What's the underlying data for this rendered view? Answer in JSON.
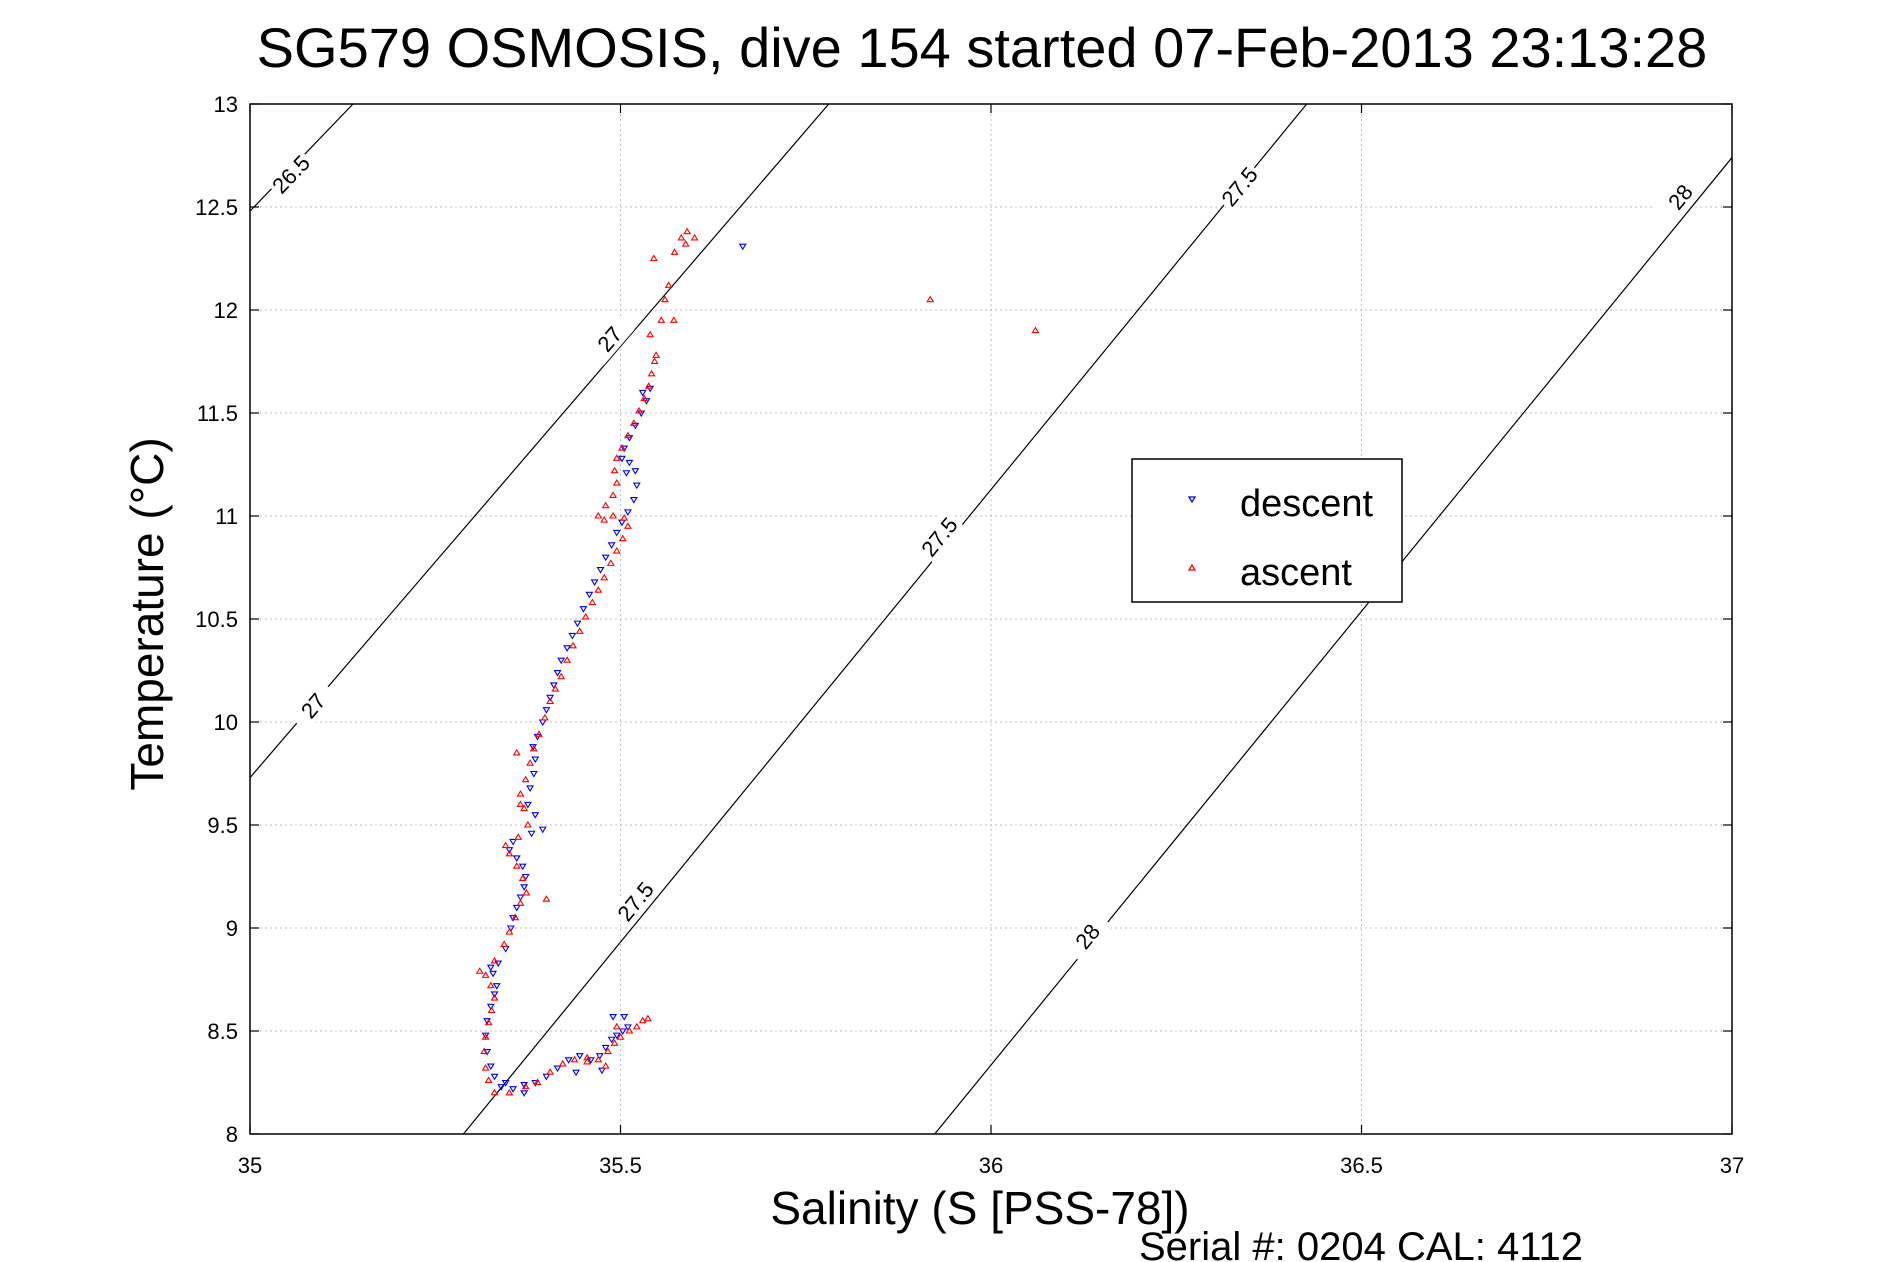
{
  "chart_data": {
    "type": "scatter",
    "title": "SG579 OSMOSIS, dive 154 started 07-Feb-2013 23:13:28",
    "xlabel": "Salinity (S [PSS-78])",
    "ylabel": "Temperature (°C)",
    "xlim": [
      35,
      37
    ],
    "ylim": [
      8,
      13
    ],
    "xticks": [
      35,
      35.5,
      36,
      36.5,
      37
    ],
    "xtick_labels": [
      "35",
      "35.5",
      "36",
      "36.5",
      "37"
    ],
    "yticks": [
      8,
      8.5,
      9,
      9.5,
      10,
      10.5,
      11,
      11.5,
      12,
      12.5,
      13
    ],
    "ytick_labels": [
      "8",
      "8.5",
      "9",
      "9.5",
      "10",
      "10.5",
      "11",
      "11.5",
      "12",
      "12.5",
      "13"
    ],
    "grid": true,
    "legend_position": "right-center",
    "colors": {
      "descent": "#0000ff",
      "ascent": "#ff0000",
      "contour": "#000000",
      "grid": "#bfbfbf"
    },
    "density_contours": [
      {
        "label": "26.5",
        "points": [
          [
            35.0,
            12.48
          ],
          [
            35.139,
            13.0
          ]
        ]
      },
      {
        "label": "27",
        "points": [
          [
            35.0,
            9.73
          ],
          [
            35.781,
            13.0
          ]
        ]
      },
      {
        "label": "27.5",
        "points": [
          [
            35.288,
            8.0
          ],
          [
            36.426,
            13.0
          ]
        ]
      },
      {
        "label": "28",
        "points": [
          [
            35.924,
            8.0
          ],
          [
            37.0,
            12.74
          ]
        ]
      }
    ],
    "contour_labels": [
      {
        "text": "26.5",
        "x": 35.055,
        "y": 12.66
      },
      {
        "text": "27",
        "x": 35.485,
        "y": 11.86
      },
      {
        "text": "27",
        "x": 35.085,
        "y": 10.08
      },
      {
        "text": "27.5",
        "x": 36.335,
        "y": 12.6
      },
      {
        "text": "27.5",
        "x": 35.93,
        "y": 10.9
      },
      {
        "text": "27.5",
        "x": 35.52,
        "y": 9.13
      },
      {
        "text": "28",
        "x": 36.93,
        "y": 12.55
      },
      {
        "text": "28",
        "x": 36.13,
        "y": 8.96
      }
    ],
    "series": [
      {
        "name": "descent",
        "marker": "triangle-down",
        "points": [
          [
            35.339,
            8.23
          ],
          [
            35.33,
            8.28
          ],
          [
            35.325,
            8.33
          ],
          [
            35.32,
            8.4
          ],
          [
            35.318,
            8.48
          ],
          [
            35.32,
            8.55
          ],
          [
            35.325,
            8.62
          ],
          [
            35.33,
            8.68
          ],
          [
            35.333,
            8.72
          ],
          [
            35.328,
            8.78
          ],
          [
            35.325,
            8.81
          ],
          [
            35.335,
            8.83
          ],
          [
            35.345,
            8.9
          ],
          [
            35.352,
            9.0
          ],
          [
            35.355,
            9.05
          ],
          [
            35.36,
            9.1
          ],
          [
            35.365,
            9.15
          ],
          [
            35.37,
            9.2
          ],
          [
            35.372,
            9.25
          ],
          [
            35.368,
            9.3
          ],
          [
            35.36,
            9.34
          ],
          [
            35.35,
            9.38
          ],
          [
            35.355,
            9.42
          ],
          [
            35.38,
            9.46
          ],
          [
            35.395,
            9.48
          ],
          [
            35.385,
            9.55
          ],
          [
            35.375,
            9.6
          ],
          [
            35.378,
            9.68
          ],
          [
            35.383,
            9.75
          ],
          [
            35.385,
            9.82
          ],
          [
            35.382,
            9.88
          ],
          [
            35.388,
            9.93
          ],
          [
            35.395,
            10.0
          ],
          [
            35.4,
            10.06
          ],
          [
            35.405,
            10.12
          ],
          [
            35.41,
            10.18
          ],
          [
            35.415,
            10.24
          ],
          [
            35.42,
            10.3
          ],
          [
            35.428,
            10.36
          ],
          [
            35.435,
            10.42
          ],
          [
            35.442,
            10.48
          ],
          [
            35.45,
            10.55
          ],
          [
            35.458,
            10.62
          ],
          [
            35.465,
            10.68
          ],
          [
            35.473,
            10.74
          ],
          [
            35.48,
            10.8
          ],
          [
            35.488,
            10.86
          ],
          [
            35.495,
            10.92
          ],
          [
            35.502,
            10.97
          ],
          [
            35.51,
            11.02
          ],
          [
            35.518,
            11.08
          ],
          [
            35.522,
            11.15
          ],
          [
            35.52,
            11.22
          ],
          [
            35.512,
            11.26
          ],
          [
            35.502,
            11.28
          ],
          [
            35.505,
            11.33
          ],
          [
            35.512,
            11.38
          ],
          [
            35.52,
            11.44
          ],
          [
            35.528,
            11.5
          ],
          [
            35.535,
            11.56
          ],
          [
            35.54,
            11.62
          ],
          [
            35.53,
            11.6
          ],
          [
            35.345,
            8.25
          ],
          [
            35.355,
            8.22
          ],
          [
            35.37,
            8.24
          ],
          [
            35.385,
            8.25
          ],
          [
            35.4,
            8.28
          ],
          [
            35.415,
            8.32
          ],
          [
            35.43,
            8.36
          ],
          [
            35.445,
            8.38
          ],
          [
            35.46,
            8.36
          ],
          [
            35.472,
            8.38
          ],
          [
            35.48,
            8.42
          ],
          [
            35.488,
            8.46
          ],
          [
            35.495,
            8.48
          ],
          [
            35.503,
            8.5
          ],
          [
            35.51,
            8.52
          ],
          [
            35.49,
            8.57
          ],
          [
            35.505,
            8.57
          ],
          [
            35.44,
            8.3
          ],
          [
            35.475,
            8.31
          ],
          [
            35.37,
            8.2
          ],
          [
            35.665,
            12.31
          ],
          [
            35.508,
            11.21
          ]
        ]
      },
      {
        "name": "ascent",
        "marker": "triangle-up",
        "points": [
          [
            35.33,
            8.2
          ],
          [
            35.322,
            8.26
          ],
          [
            35.318,
            8.32
          ],
          [
            35.316,
            8.4
          ],
          [
            35.318,
            8.47
          ],
          [
            35.322,
            8.54
          ],
          [
            35.326,
            8.6
          ],
          [
            35.33,
            8.66
          ],
          [
            35.325,
            8.72
          ],
          [
            35.318,
            8.77
          ],
          [
            35.31,
            8.79
          ],
          [
            35.33,
            8.84
          ],
          [
            35.343,
            8.92
          ],
          [
            35.35,
            8.98
          ],
          [
            35.358,
            9.05
          ],
          [
            35.365,
            9.12
          ],
          [
            35.373,
            9.17
          ],
          [
            35.368,
            9.24
          ],
          [
            35.36,
            9.3
          ],
          [
            35.35,
            9.36
          ],
          [
            35.345,
            9.4
          ],
          [
            35.362,
            9.44
          ],
          [
            35.375,
            9.5
          ],
          [
            35.37,
            9.58
          ],
          [
            35.365,
            9.65
          ],
          [
            35.372,
            9.72
          ],
          [
            35.378,
            9.8
          ],
          [
            35.383,
            9.87
          ],
          [
            35.39,
            9.94
          ],
          [
            35.398,
            10.02
          ],
          [
            35.405,
            10.1
          ],
          [
            35.412,
            10.16
          ],
          [
            35.42,
            10.22
          ],
          [
            35.428,
            10.3
          ],
          [
            35.436,
            10.37
          ],
          [
            35.445,
            10.44
          ],
          [
            35.453,
            10.51
          ],
          [
            35.462,
            10.58
          ],
          [
            35.47,
            10.64
          ],
          [
            35.478,
            10.7
          ],
          [
            35.487,
            10.77
          ],
          [
            35.495,
            10.83
          ],
          [
            35.503,
            10.89
          ],
          [
            35.51,
            10.95
          ],
          [
            35.505,
            10.99
          ],
          [
            35.49,
            11.0
          ],
          [
            35.478,
            10.98
          ],
          [
            35.47,
            11.0
          ],
          [
            35.48,
            11.05
          ],
          [
            35.49,
            11.1
          ],
          [
            35.495,
            11.16
          ],
          [
            35.492,
            11.22
          ],
          [
            35.495,
            11.28
          ],
          [
            35.502,
            11.33
          ],
          [
            35.51,
            11.39
          ],
          [
            35.518,
            11.45
          ],
          [
            35.525,
            11.51
          ],
          [
            35.532,
            11.57
          ],
          [
            35.538,
            11.63
          ],
          [
            35.542,
            11.69
          ],
          [
            35.546,
            11.75
          ],
          [
            35.548,
            11.78
          ],
          [
            35.555,
            11.95
          ],
          [
            35.56,
            12.05
          ],
          [
            35.565,
            12.12
          ],
          [
            35.573,
            12.28
          ],
          [
            35.582,
            12.35
          ],
          [
            35.59,
            12.38
          ],
          [
            35.572,
            11.95
          ],
          [
            35.54,
            11.88
          ],
          [
            35.6,
            12.35
          ],
          [
            35.588,
            12.32
          ],
          [
            35.35,
            8.2
          ],
          [
            35.372,
            8.23
          ],
          [
            35.388,
            8.25
          ],
          [
            35.405,
            8.3
          ],
          [
            35.422,
            8.34
          ],
          [
            35.438,
            8.36
          ],
          [
            35.455,
            8.37
          ],
          [
            35.47,
            8.36
          ],
          [
            35.483,
            8.4
          ],
          [
            35.492,
            8.44
          ],
          [
            35.5,
            8.47
          ],
          [
            35.512,
            8.5
          ],
          [
            35.522,
            8.52
          ],
          [
            35.53,
            8.55
          ],
          [
            35.537,
            8.56
          ],
          [
            35.48,
            8.33
          ],
          [
            35.455,
            8.35
          ],
          [
            35.918,
            12.05
          ],
          [
            36.06,
            11.9
          ],
          [
            35.545,
            12.25
          ],
          [
            35.365,
            9.6
          ],
          [
            35.36,
            9.85
          ],
          [
            35.4,
            9.14
          ],
          [
            35.495,
            8.52
          ]
        ]
      }
    ]
  },
  "footer": {
    "serial_text": "Serial #: 0204  CAL: 4112"
  }
}
